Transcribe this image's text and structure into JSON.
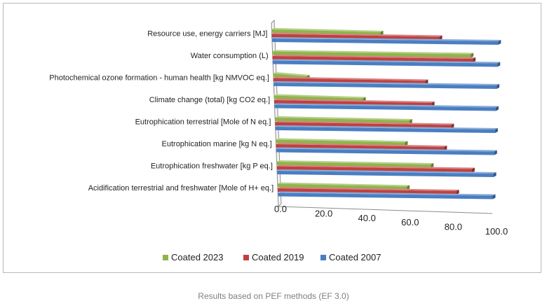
{
  "colors": {
    "coated_2023": "#8db54a",
    "coated_2019": "#c0403f",
    "coated_2007": "#4a7ec2",
    "axis": "#8c8c8c",
    "grid": "#d9d9d9"
  },
  "caption": "Results based on PEF methods (EF 3.0)",
  "chart_data": {
    "type": "bar",
    "orientation": "horizontal",
    "style": "3d-perspective",
    "categories": [
      "Resource use, energy carriers [MJ]",
      "Water consumption (L)",
      "Photochemical ozone formation - human health [kg NMVOC eq.]",
      "Climate change  (total) [kg CO2 eq.]",
      "Eutrophication terrestrial [Mole of N eq.]",
      "Eutrophication marine [kg N eq.]",
      "Eutrophication freshwater [kg P eq.]",
      "Acidification terrestrial and freshwater [Mole of H+ eq.]"
    ],
    "series": [
      {
        "name": "Coated 2023",
        "values": [
          48,
          88,
          15,
          40,
          61,
          59,
          71,
          60
        ]
      },
      {
        "name": "Coated 2019",
        "values": [
          74,
          89,
          68,
          71,
          80,
          77,
          90,
          83
        ]
      },
      {
        "name": "Coated 2007",
        "values": [
          100,
          100,
          100,
          100,
          100,
          100,
          100,
          100
        ]
      }
    ],
    "x_ticks": [
      "0.0",
      "20.0",
      "40.0",
      "60.0",
      "80.0",
      "100.0"
    ],
    "xlim": [
      0,
      100
    ],
    "grid": false,
    "legend_position": "bottom"
  }
}
